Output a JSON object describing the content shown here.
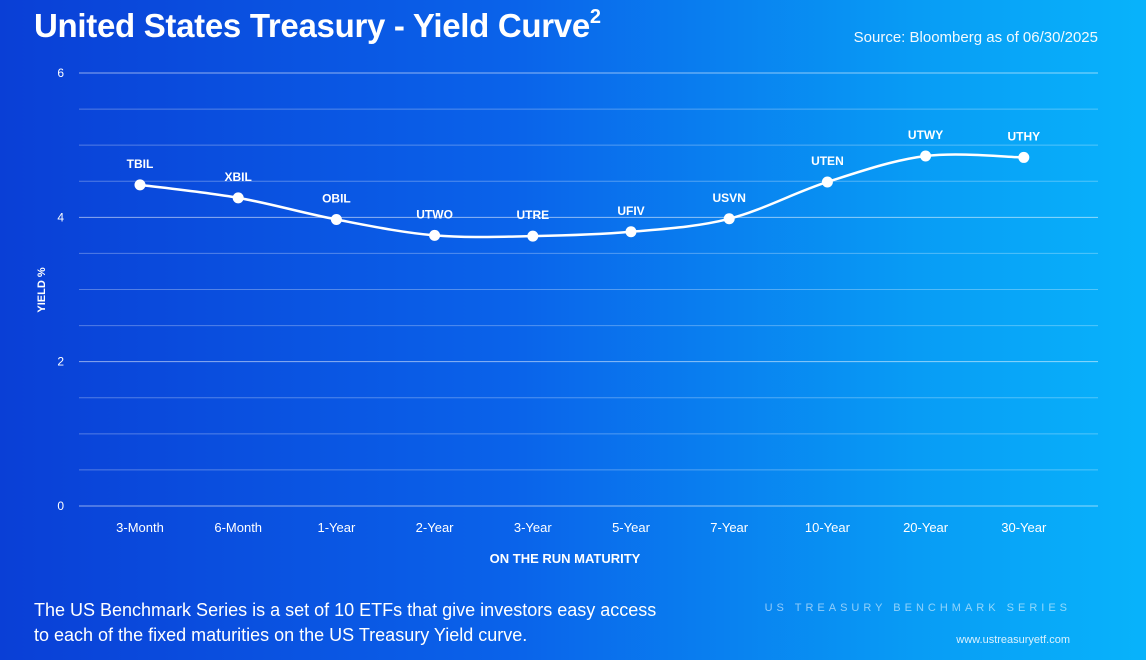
{
  "header": {
    "title": "United States Treasury - Yield Curve",
    "title_superscript": "2",
    "source": "Source: Bloomberg as of 06/30/2025"
  },
  "footer": {
    "description": "The US Benchmark Series is a set of 10 ETFs that give investors easy access to each of the fixed maturities on the US Treasury Yield curve.",
    "series_label": "US TREASURY BENCHMARK SERIES",
    "website": "www.ustreasuryetf.com"
  },
  "colors": {
    "background_start": "#0a3fd6",
    "background_end": "#08b3fb",
    "line": "#ffffff",
    "gridline": "#ffffff"
  },
  "chart_data": {
    "type": "line",
    "title": "United States Treasury - Yield Curve",
    "xlabel": "ON THE RUN MATURITY",
    "ylabel": "YIELD %",
    "ylim": [
      0,
      6
    ],
    "yticks": [
      0,
      2,
      4,
      6
    ],
    "grid": true,
    "smooth": true,
    "categories": [
      "3-Month",
      "6-Month",
      "1-Year",
      "2-Year",
      "3-Year",
      "5-Year",
      "7-Year",
      "10-Year",
      "20-Year",
      "30-Year"
    ],
    "point_labels": [
      "TBIL",
      "XBIL",
      "OBIL",
      "UTWO",
      "UTRE",
      "UFIV",
      "USVN",
      "UTEN",
      "UTWY",
      "UTHY"
    ],
    "values": [
      4.45,
      4.27,
      3.97,
      3.75,
      3.74,
      3.8,
      3.98,
      4.49,
      4.85,
      4.83
    ]
  }
}
